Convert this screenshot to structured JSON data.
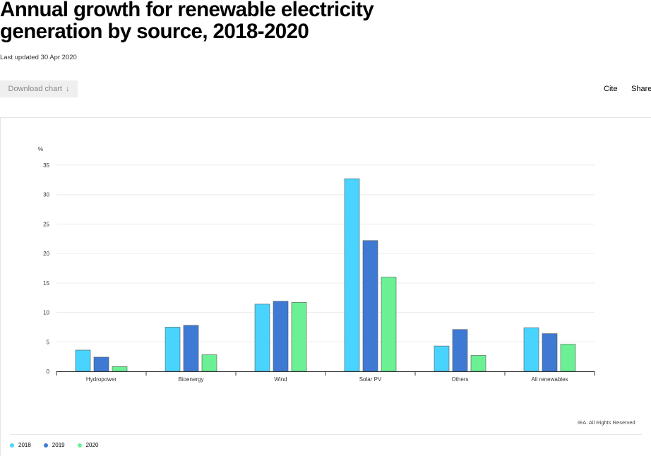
{
  "header": {
    "title": "Annual growth for renewable electricity generation by source, 2018-2020",
    "updated": "Last updated 30 Apr 2020"
  },
  "toolbar": {
    "download_label": "Download chart",
    "download_icon": "↓",
    "cite_label": "Cite",
    "share_label": "Share"
  },
  "credits": "IEA. All Rights Reserved",
  "chart_data": {
    "type": "bar",
    "title": "",
    "ylabel": "%",
    "xlabel": "",
    "ylim": [
      0,
      35
    ],
    "yticks": [
      0,
      5,
      10,
      15,
      20,
      25,
      30,
      35
    ],
    "grid": true,
    "legend_position": "bottom-left",
    "categories": [
      "Hydropower",
      "Bioenergy",
      "Wind",
      "Solar PV",
      "Others",
      "All renewables"
    ],
    "series": [
      {
        "name": "2018",
        "color": "#48d4ff",
        "values": [
          3.6,
          7.5,
          11.4,
          32.7,
          4.3,
          7.4
        ]
      },
      {
        "name": "2019",
        "color": "#3e7ad3",
        "values": [
          2.4,
          7.8,
          11.9,
          22.2,
          7.1,
          6.4
        ]
      },
      {
        "name": "2020",
        "color": "#6bf194",
        "values": [
          0.8,
          2.8,
          11.7,
          16.0,
          2.7,
          4.6
        ]
      }
    ]
  }
}
